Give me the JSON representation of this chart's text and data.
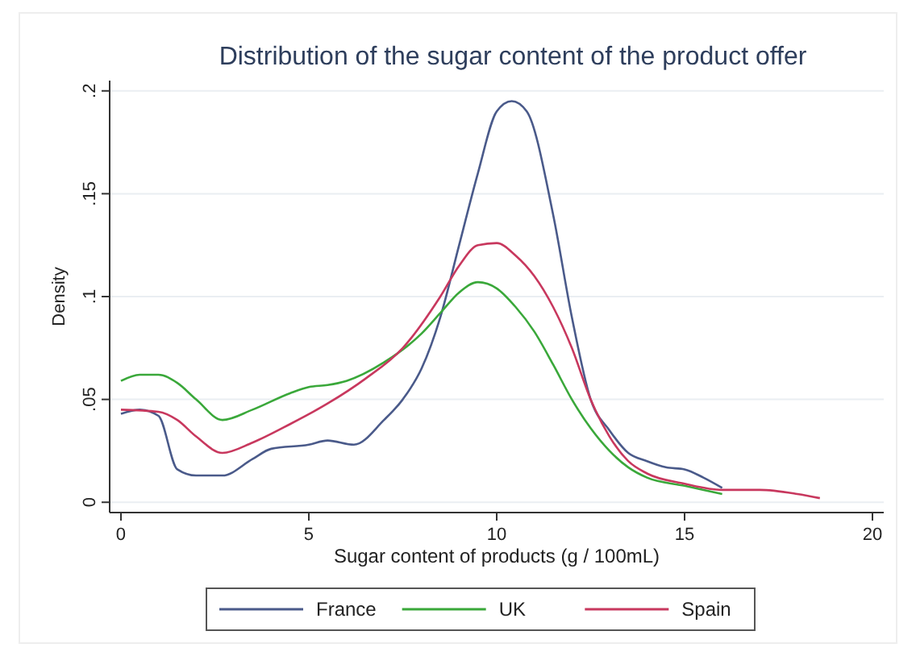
{
  "chart_data": {
    "type": "line",
    "title": "Distribution of the sugar content of the product offer",
    "xlabel": "Sugar content of products (g / 100mL)",
    "ylabel": "Density",
    "xlim": [
      -0.3,
      20.3
    ],
    "xticks": [
      0,
      5,
      10,
      15,
      20
    ],
    "ylim": [
      -0.005,
      0.205
    ],
    "yticks": [
      {
        "value": 0,
        "label": "0"
      },
      {
        "value": 0.05,
        "label": ".05"
      },
      {
        "value": 0.1,
        "label": ".1"
      },
      {
        "value": 0.15,
        "label": ".15"
      },
      {
        "value": 0.2,
        "label": ".2"
      }
    ],
    "grid": "y",
    "legend": "bottom",
    "marker": "none",
    "line_style": "solid",
    "series": [
      {
        "name": "France",
        "color": "#4a5a8a",
        "x": [
          0,
          0.5,
          1,
          1.5,
          2,
          2.7,
          3.5,
          4,
          5,
          5.5,
          6.2,
          7,
          7.5,
          8,
          8.5,
          9,
          9.5,
          10,
          10.4,
          10.8,
          11.5,
          12,
          12.5,
          13,
          13.5,
          14,
          14.5,
          15,
          15.5,
          16
        ],
        "values": [
          0.043,
          0.045,
          0.042,
          0.016,
          0.013,
          0.013,
          0.021,
          0.026,
          0.028,
          0.03,
          0.028,
          0.04,
          0.05,
          0.065,
          0.09,
          0.125,
          0.16,
          0.19,
          0.195,
          0.19,
          0.14,
          0.09,
          0.05,
          0.035,
          0.024,
          0.02,
          0.017,
          0.016,
          0.012,
          0.007
        ]
      },
      {
        "name": "UK",
        "color": "#3aa83a",
        "x": [
          0,
          0.5,
          1,
          1.5,
          2,
          2.7,
          3.5,
          4.5,
          5,
          5.5,
          6,
          7,
          8,
          8.5,
          9,
          9.5,
          10,
          10.5,
          11,
          11.5,
          12,
          12.5,
          13,
          13.5,
          14,
          15,
          16
        ],
        "values": [
          0.059,
          0.062,
          0.062,
          0.058,
          0.05,
          0.04,
          0.045,
          0.053,
          0.056,
          0.057,
          0.059,
          0.068,
          0.082,
          0.092,
          0.102,
          0.107,
          0.104,
          0.095,
          0.083,
          0.067,
          0.05,
          0.036,
          0.025,
          0.017,
          0.012,
          0.008,
          0.004
        ]
      },
      {
        "name": "Spain",
        "color": "#c8385e",
        "x": [
          0,
          1,
          1.5,
          2,
          2.7,
          3.5,
          4.5,
          5.5,
          6.5,
          7.5,
          8.5,
          9,
          9.5,
          10,
          10.5,
          11,
          11.5,
          12,
          12.5,
          13,
          13.5,
          14,
          15,
          16,
          17,
          18,
          18.6
        ],
        "values": [
          0.045,
          0.044,
          0.04,
          0.032,
          0.024,
          0.029,
          0.038,
          0.048,
          0.06,
          0.075,
          0.1,
          0.115,
          0.125,
          0.126,
          0.12,
          0.11,
          0.095,
          0.075,
          0.05,
          0.032,
          0.02,
          0.014,
          0.009,
          0.006,
          0.006,
          0.004,
          0.002
        ]
      }
    ]
  }
}
